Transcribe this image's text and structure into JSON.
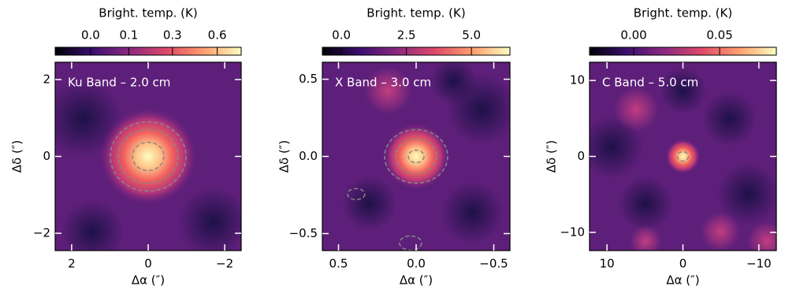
{
  "chart_data": [
    {
      "type": "image",
      "title": "Ku Band – 2.0 cm",
      "xlabel": "Δα (″)",
      "ylabel": "Δδ (″)",
      "xlim": [
        2.43,
        -2.43
      ],
      "ylim": [
        -2.45,
        2.45
      ],
      "xticks": [
        2,
        0,
        {
          "value": -2,
          "label": "−2"
        }
      ],
      "yticks": [
        {
          "value": -2,
          "label": "−2"
        },
        0,
        2
      ],
      "colorbar": {
        "label": "Bright. temp. (K)",
        "scale": "sqrt",
        "clim": [
          -0.03,
          0.8
        ],
        "ticks": [
          {
            "value": 0,
            "label": "0.0"
          },
          0.1,
          0.3,
          0.6
        ]
      }
    },
    {
      "type": "image",
      "title": "X Band – 3.0 cm",
      "xlabel": "Δα (″)",
      "ylabel": "Δδ (″)",
      "xlim": [
        0.604,
        -0.604
      ],
      "ylim": [
        -0.61,
        0.61
      ],
      "xticks": [
        0.5,
        {
          "value": 0,
          "label": "0.0"
        },
        {
          "value": -0.5,
          "label": "−0.5"
        }
      ],
      "yticks": [
        {
          "value": -0.5,
          "label": "−0.5"
        },
        {
          "value": 0,
          "label": "0.0"
        },
        0.5
      ],
      "colorbar": {
        "label": "Bright. temp. (K)",
        "scale": "linear",
        "clim": [
          -0.73,
          6.48
        ],
        "ticks": [
          {
            "value": 0,
            "label": "0.0"
          },
          2.5,
          {
            "value": 5,
            "label": "5.0"
          }
        ]
      }
    },
    {
      "type": "image",
      "title": "C Band – 5.0 cm",
      "xlabel": "Δα (″)",
      "ylabel": "Δδ (″)",
      "xlim": [
        12.3,
        -12.3
      ],
      "ylim": [
        -12.4,
        12.4
      ],
      "xticks": [
        10,
        0,
        {
          "value": -10,
          "label": "−10"
        }
      ],
      "yticks": [
        {
          "value": -10,
          "label": "−10"
        },
        0,
        10
      ],
      "colorbar": {
        "label": "Bright. temp. (K)",
        "scale": "linear",
        "clim": [
          -0.0257,
          0.083
        ],
        "ticks": [
          {
            "value": 0,
            "label": "0.00"
          },
          0.05
        ]
      }
    }
  ]
}
